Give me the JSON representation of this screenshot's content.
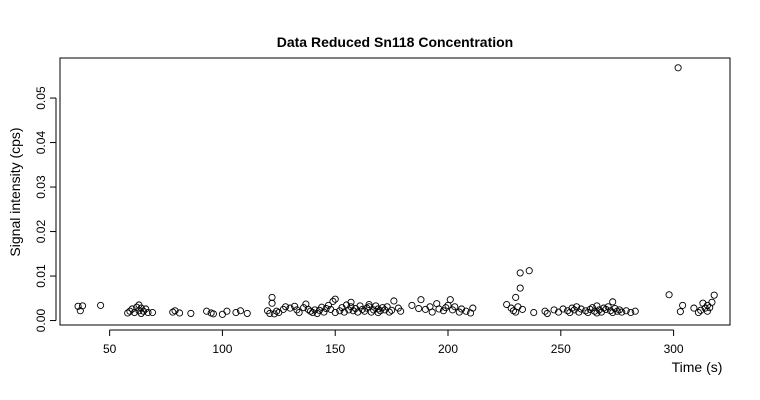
{
  "chart_data": {
    "type": "scatter",
    "title": "Data Reduced Sn118 Concentration",
    "xlabel": "Time (s)",
    "ylabel": "Signal intensity (cps)",
    "xlim": [
      28,
      325
    ],
    "ylim": [
      -0.001,
      0.059
    ],
    "xticks": [
      50,
      100,
      150,
      200,
      250,
      300
    ],
    "yticks": [
      0.0,
      0.01,
      0.02,
      0.03,
      0.04,
      0.05
    ],
    "ytick_labels": [
      "0.00",
      "0.01",
      "0.02",
      "0.03",
      "0.04",
      "0.05"
    ],
    "grid": false,
    "series": [
      {
        "name": "Sn118",
        "x": [
          36,
          37,
          38,
          46,
          58,
          59,
          60,
          61,
          62,
          63,
          63,
          64,
          64,
          65,
          66,
          67,
          69,
          78,
          79,
          81,
          86,
          93,
          95,
          96,
          100,
          102,
          106,
          108,
          111,
          120,
          121,
          122,
          122,
          123,
          124,
          125,
          127,
          128,
          130,
          132,
          133,
          134,
          136,
          137,
          138,
          139,
          140,
          141,
          142,
          143,
          144,
          145,
          146,
          147,
          148,
          149,
          150,
          150,
          152,
          153,
          154,
          155,
          156,
          157,
          157,
          158,
          159,
          160,
          161,
          162,
          163,
          164,
          165,
          165,
          166,
          167,
          168,
          169,
          169,
          170,
          171,
          172,
          173,
          174,
          175,
          176,
          178,
          179,
          184,
          187,
          188,
          190,
          192,
          193,
          195,
          196,
          198,
          199,
          200,
          201,
          202,
          203,
          205,
          206,
          208,
          210,
          211,
          226,
          228,
          229,
          230,
          230,
          231,
          232,
          232,
          233,
          236,
          238,
          243,
          244,
          247,
          249,
          251,
          253,
          254,
          255,
          256,
          257,
          258,
          259,
          261,
          262,
          263,
          264,
          265,
          266,
          266,
          267,
          268,
          269,
          270,
          271,
          272,
          273,
          273,
          274,
          275,
          276,
          277,
          279,
          281,
          283,
          298,
          302,
          303,
          304,
          309,
          311,
          312,
          313,
          314,
          315,
          315,
          316,
          317,
          318
        ],
        "y": [
          0.0032,
          0.0022,
          0.0033,
          0.0034,
          0.0017,
          0.0021,
          0.0026,
          0.0018,
          0.003,
          0.0022,
          0.0035,
          0.0028,
          0.0016,
          0.0021,
          0.0026,
          0.0018,
          0.0018,
          0.0019,
          0.0022,
          0.0017,
          0.0016,
          0.0021,
          0.0017,
          0.0015,
          0.0014,
          0.0021,
          0.0018,
          0.0022,
          0.0016,
          0.0022,
          0.0016,
          0.0039,
          0.0052,
          0.0015,
          0.0021,
          0.0018,
          0.0025,
          0.0031,
          0.0028,
          0.0032,
          0.0024,
          0.0018,
          0.0029,
          0.0037,
          0.0025,
          0.0021,
          0.0018,
          0.0024,
          0.0016,
          0.0023,
          0.003,
          0.0019,
          0.0027,
          0.0034,
          0.0025,
          0.0043,
          0.0018,
          0.0048,
          0.0022,
          0.0029,
          0.0019,
          0.0035,
          0.0024,
          0.0041,
          0.0031,
          0.0022,
          0.0027,
          0.0019,
          0.0033,
          0.0025,
          0.0021,
          0.0028,
          0.0036,
          0.0031,
          0.0019,
          0.0024,
          0.0033,
          0.0026,
          0.0018,
          0.0022,
          0.0029,
          0.0024,
          0.0031,
          0.0019,
          0.0023,
          0.0044,
          0.0028,
          0.0021,
          0.0034,
          0.0027,
          0.0047,
          0.0025,
          0.0031,
          0.0019,
          0.0038,
          0.0026,
          0.0022,
          0.0029,
          0.0034,
          0.0047,
          0.0024,
          0.0031,
          0.0019,
          0.0026,
          0.0021,
          0.0017,
          0.0028,
          0.0036,
          0.0028,
          0.0022,
          0.0052,
          0.0019,
          0.0031,
          0.0073,
          0.0107,
          0.0025,
          0.0112,
          0.0018,
          0.0021,
          0.0016,
          0.0024,
          0.0019,
          0.0026,
          0.0022,
          0.0018,
          0.0028,
          0.0024,
          0.0031,
          0.0019,
          0.0026,
          0.0022,
          0.0018,
          0.0025,
          0.0029,
          0.0021,
          0.0017,
          0.0033,
          0.0024,
          0.0019,
          0.0028,
          0.0025,
          0.0031,
          0.0022,
          0.0018,
          0.0042,
          0.0027,
          0.0021,
          0.0024,
          0.0019,
          0.0022,
          0.0018,
          0.0021,
          0.0058,
          0.0568,
          0.002,
          0.0034,
          0.0028,
          0.0018,
          0.0023,
          0.0039,
          0.0028,
          0.0034,
          0.0021,
          0.0029,
          0.0041,
          0.0057
        ]
      }
    ]
  }
}
